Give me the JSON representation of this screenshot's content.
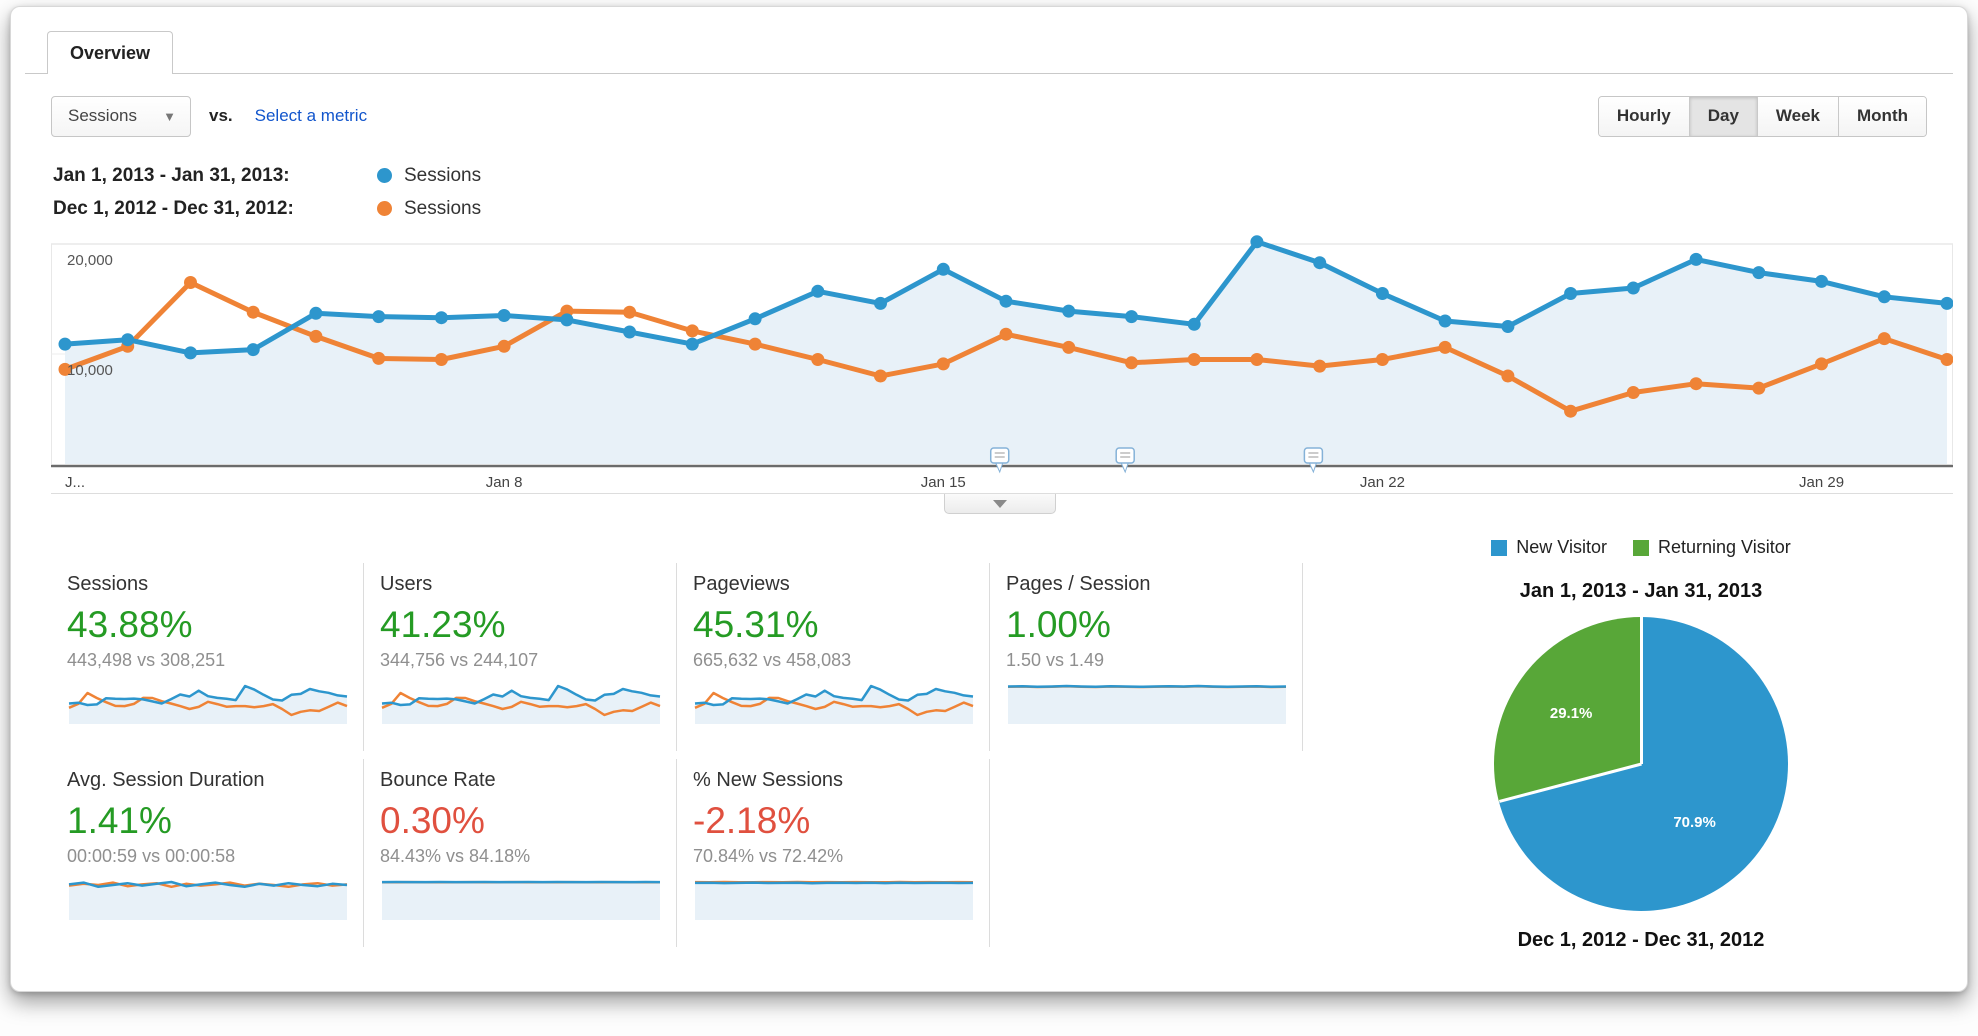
{
  "tab": {
    "label": "Overview"
  },
  "toolbar": {
    "metric_selector": "Sessions",
    "vs_label": "vs.",
    "select_metric_label": "Select a metric",
    "granularity": [
      "Hourly",
      "Day",
      "Week",
      "Month"
    ],
    "granularity_active": "Day"
  },
  "legend": [
    {
      "range": "Jan 1, 2013 - Jan 31, 2013:",
      "metric": "Sessions",
      "color": "#2d96cd"
    },
    {
      "range": "Dec 1, 2012 - Dec 31, 2012:",
      "metric": "Sessions",
      "color": "#ef8336"
    }
  ],
  "chart_data": [
    {
      "type": "line",
      "title": "Sessions by day, Jan 2013 vs Dec 2012",
      "ylim": [
        0,
        20000
      ],
      "grid": "horizontal",
      "y_ticks": [
        {
          "label": "20,000",
          "value": 20000
        },
        {
          "label": "10,000",
          "value": 10000
        }
      ],
      "x_ticks": [
        {
          "label": "J...",
          "day": 1,
          "anchor": "start"
        },
        {
          "label": "Jan 8",
          "day": 8,
          "anchor": "middle"
        },
        {
          "label": "Jan 15",
          "day": 15,
          "anchor": "middle"
        },
        {
          "label": "Jan 22",
          "day": 22,
          "anchor": "middle"
        },
        {
          "label": "Jan 29",
          "day": 29,
          "anchor": "middle"
        }
      ],
      "annotation_days": [
        15.9,
        17.9,
        20.9
      ],
      "series": [
        {
          "name": "Sessions",
          "date_range": "Jan 1, 2013 - Jan 31, 2013",
          "color": "#2d96cd",
          "fill": "#e8f1f8",
          "values": [
            10900,
            11300,
            10100,
            10400,
            13700,
            13400,
            13300,
            13500,
            13100,
            12000,
            10900,
            13200,
            15700,
            14600,
            17700,
            14800,
            13900,
            13400,
            12700,
            20200,
            18300,
            15500,
            13000,
            12500,
            15500,
            16000,
            18600,
            17400,
            16600,
            15200,
            14600
          ]
        },
        {
          "name": "Sessions",
          "date_range": "Dec 1, 2012 - Dec 31, 2012",
          "color": "#ef8336",
          "values": [
            8600,
            10700,
            16500,
            13800,
            11600,
            9600,
            9500,
            10700,
            13900,
            13800,
            12100,
            10900,
            9500,
            8000,
            9100,
            11800,
            10600,
            9200,
            9500,
            9500,
            8900,
            9500,
            10600,
            8000,
            4800,
            6500,
            7300,
            6900,
            9100,
            11400,
            9500
          ]
        }
      ]
    },
    {
      "type": "pie",
      "title_top": "Jan 1, 2013 - Jan 31, 2013",
      "title_bottom": "Dec 1, 2012 - Dec 31, 2012",
      "legend": [
        {
          "label": "New Visitor",
          "color": "#2d96cd"
        },
        {
          "label": "Returning Visitor",
          "color": "#58a738"
        }
      ],
      "slices": [
        {
          "label": "New Visitor",
          "pct": 70.9,
          "pct_label": "70.9%",
          "color": "#2d96cd"
        },
        {
          "label": "Returning Visitor",
          "pct": 29.1,
          "pct_label": "29.1%",
          "color": "#58a738"
        }
      ]
    }
  ],
  "cards": [
    {
      "title": "Sessions",
      "delta": "43.88%",
      "delta_color": "#259b24",
      "comparison": "443,498 vs 308,251",
      "spark": "main"
    },
    {
      "title": "Users",
      "delta": "41.23%",
      "delta_color": "#259b24",
      "comparison": "344,756 vs 244,107",
      "spark": "main"
    },
    {
      "title": "Pageviews",
      "delta": "45.31%",
      "delta_color": "#259b24",
      "comparison": "665,632 vs 458,083",
      "spark": "main"
    },
    {
      "title": "Pages / Session",
      "delta": "1.00%",
      "delta_color": "#259b24",
      "comparison": "1.50 vs 1.49",
      "spark": {
        "blue": [
          1.5,
          1.51,
          1.49,
          1.5,
          1.52,
          1.5,
          1.49,
          1.51,
          1.5,
          1.49,
          1.5,
          1.51,
          1.5,
          1.52,
          1.5,
          1.49,
          1.5,
          1.51,
          1.49,
          1.5
        ],
        "orange": [
          1.49,
          1.5,
          1.48,
          1.49,
          1.51,
          1.49,
          1.48,
          1.5,
          1.49,
          1.48,
          1.49,
          1.5,
          1.49,
          1.51,
          1.49,
          1.48,
          1.49,
          1.5,
          1.48,
          1.49
        ]
      }
    },
    {
      "title": "Avg. Session Duration",
      "delta": "1.41%",
      "delta_color": "#259b24",
      "comparison": "00:00:59 vs 00:00:58",
      "spark": {
        "blue": [
          59,
          62,
          55,
          58,
          61,
          57,
          60,
          63,
          56,
          59,
          62,
          58,
          55,
          60,
          57,
          61,
          58,
          56,
          60,
          58
        ],
        "orange": [
          57,
          60,
          58,
          62,
          56,
          59,
          61,
          55,
          60,
          57,
          59,
          62,
          57,
          60,
          58,
          55,
          59,
          61,
          57,
          59
        ]
      }
    },
    {
      "title": "Bounce Rate",
      "delta": "0.30%",
      "delta_color": "#e0503f",
      "comparison": "84.43% vs 84.18%",
      "spark": {
        "blue": [
          84.4,
          84.5,
          84.3,
          84.4,
          84.6,
          84.4,
          84.3,
          84.5,
          84.4,
          84.3,
          84.5,
          84.4,
          84.6,
          84.3,
          84.4,
          84.5,
          84.3,
          84.4,
          84.5,
          84.4
        ],
        "orange": [
          84.2,
          84.1,
          84.3,
          84.2,
          84.0,
          84.2,
          84.3,
          84.1,
          84.2,
          84.3,
          84.1,
          84.2,
          84.0,
          84.3,
          84.2,
          84.1,
          84.3,
          84.2,
          84.1,
          84.2
        ]
      }
    },
    {
      "title": "% New Sessions",
      "delta": "-2.18%",
      "delta_color": "#e0503f",
      "comparison": "70.84% vs 72.42%",
      "spark": {
        "blue": [
          70.8,
          71.2,
          70.5,
          70.9,
          71.4,
          70.6,
          70.9,
          71.1,
          70.4,
          70.8,
          71.2,
          70.6,
          71.0,
          70.5,
          71.3,
          70.7,
          70.9,
          71.2,
          70.6,
          70.9
        ],
        "orange": [
          72.4,
          72.1,
          72.6,
          72.3,
          72.0,
          72.5,
          72.2,
          72.6,
          72.1,
          72.4,
          72.0,
          72.5,
          72.3,
          72.1,
          72.6,
          72.2,
          72.4,
          72.1,
          72.5,
          72.3
        ]
      }
    }
  ]
}
